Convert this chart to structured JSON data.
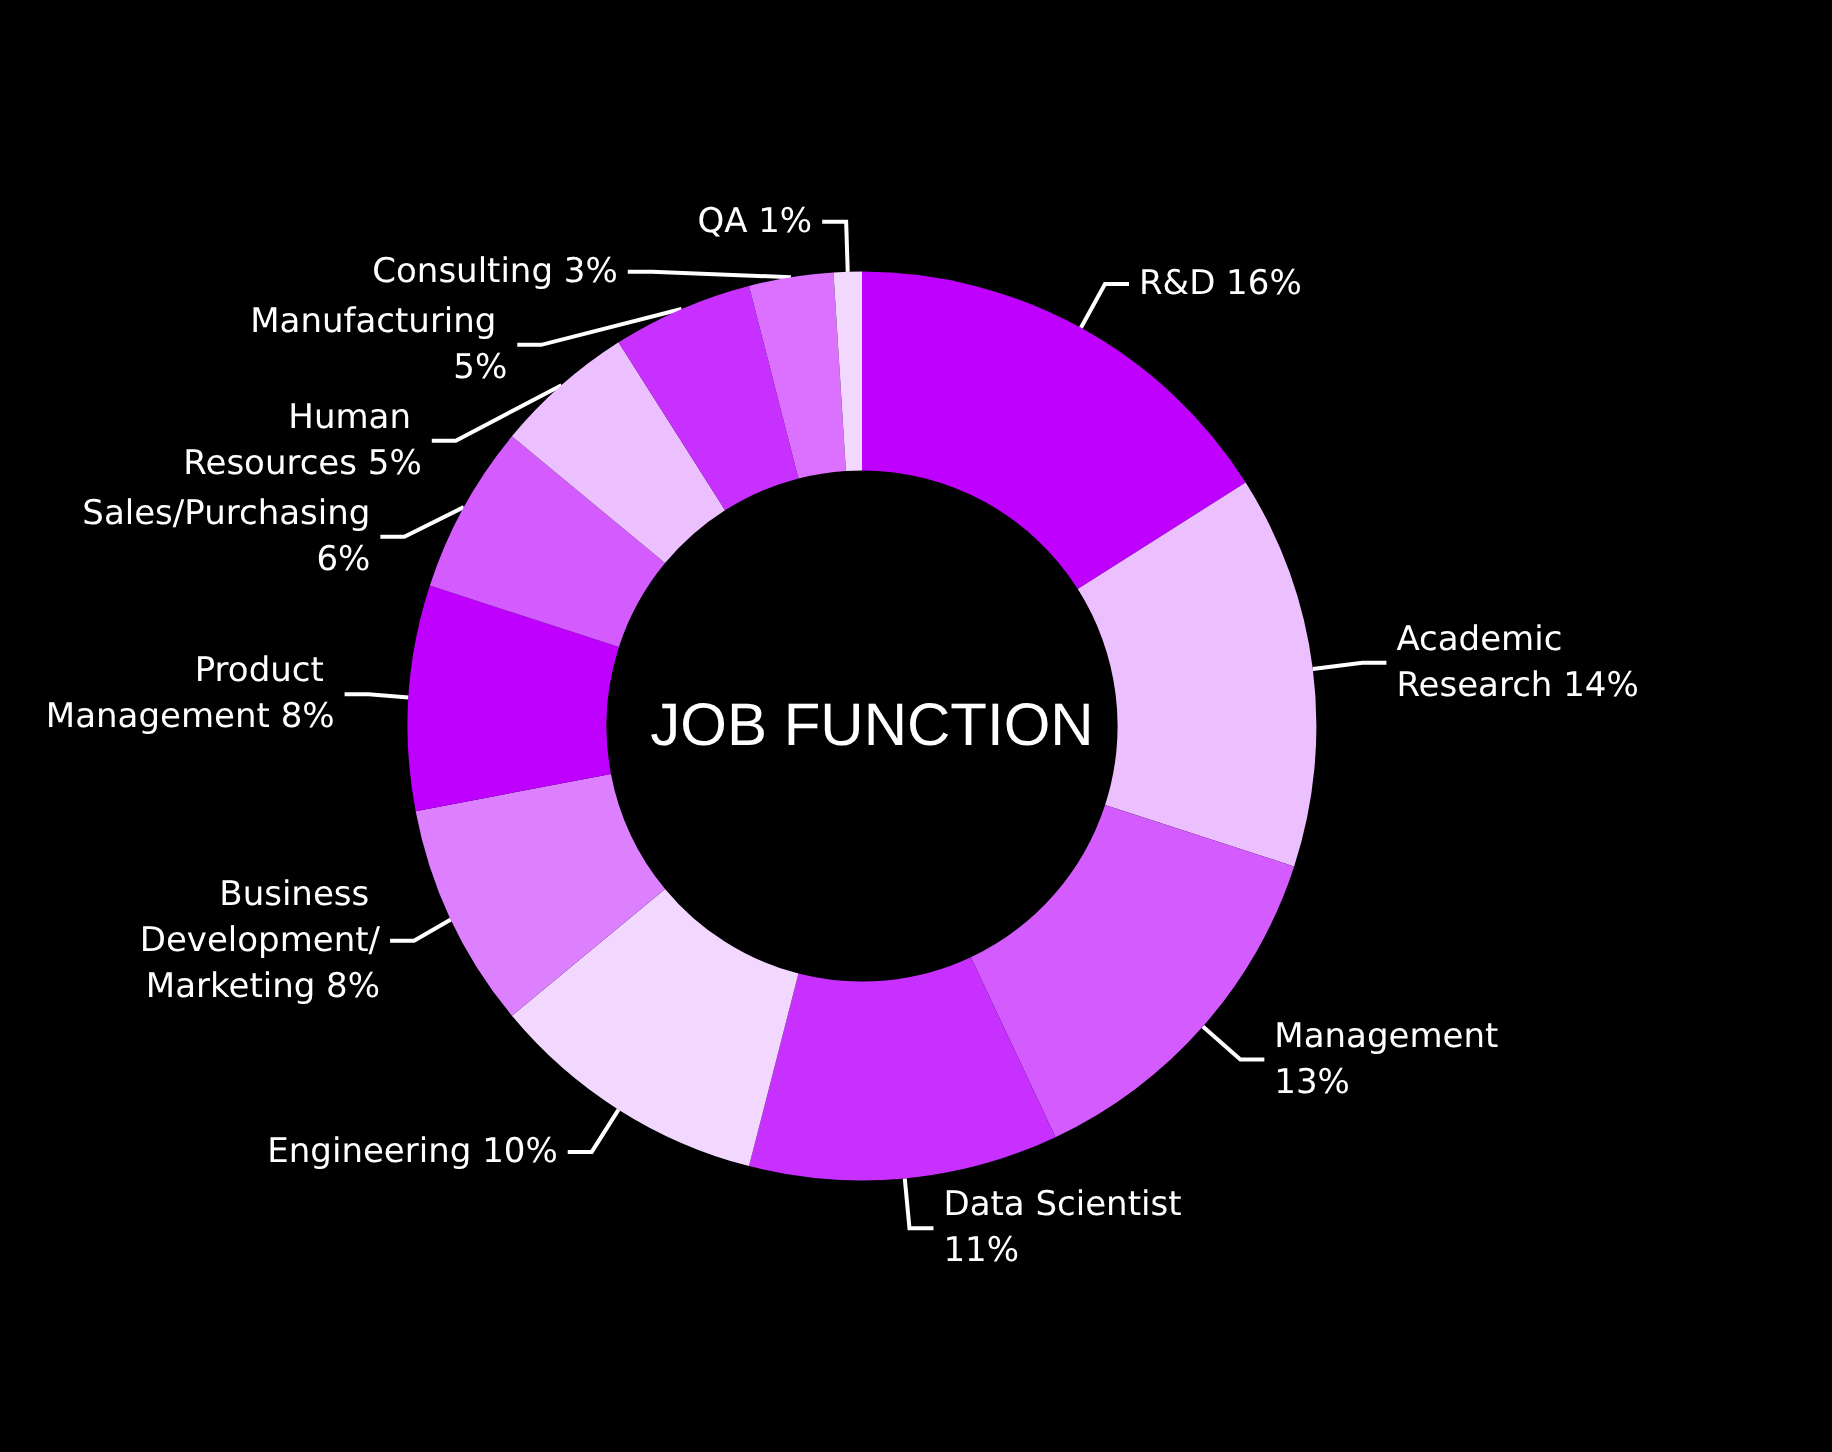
{
  "chart_data": {
    "type": "donut",
    "title": "JOB FUNCTION",
    "categories": [
      "R&D",
      "Academic Research",
      "Management",
      "Data Scientist",
      "Engineering",
      "Business Development/Marketing",
      "Product Management",
      "Sales/Purchasing",
      "Human Resources",
      "Manufacturing",
      "Consulting",
      "QA"
    ],
    "values": [
      16,
      14,
      13,
      11,
      10,
      8,
      8,
      6,
      5,
      5,
      3,
      1
    ],
    "colors": [
      "#c000ff",
      "#ecc0ff",
      "#d45cff",
      "#c830ff",
      "#f2d8ff",
      "#dc80ff",
      "#c000ff",
      "#d45cff",
      "#ecc0ff",
      "#c830ff",
      "#dc70ff",
      "#f2d8ff"
    ],
    "value_labels": [
      "16%",
      "14%",
      "13%",
      "11%",
      "10%",
      "8%",
      "8%",
      "6%",
      "5%",
      "5%",
      "3%",
      "1%"
    ],
    "legend": false
  }
}
